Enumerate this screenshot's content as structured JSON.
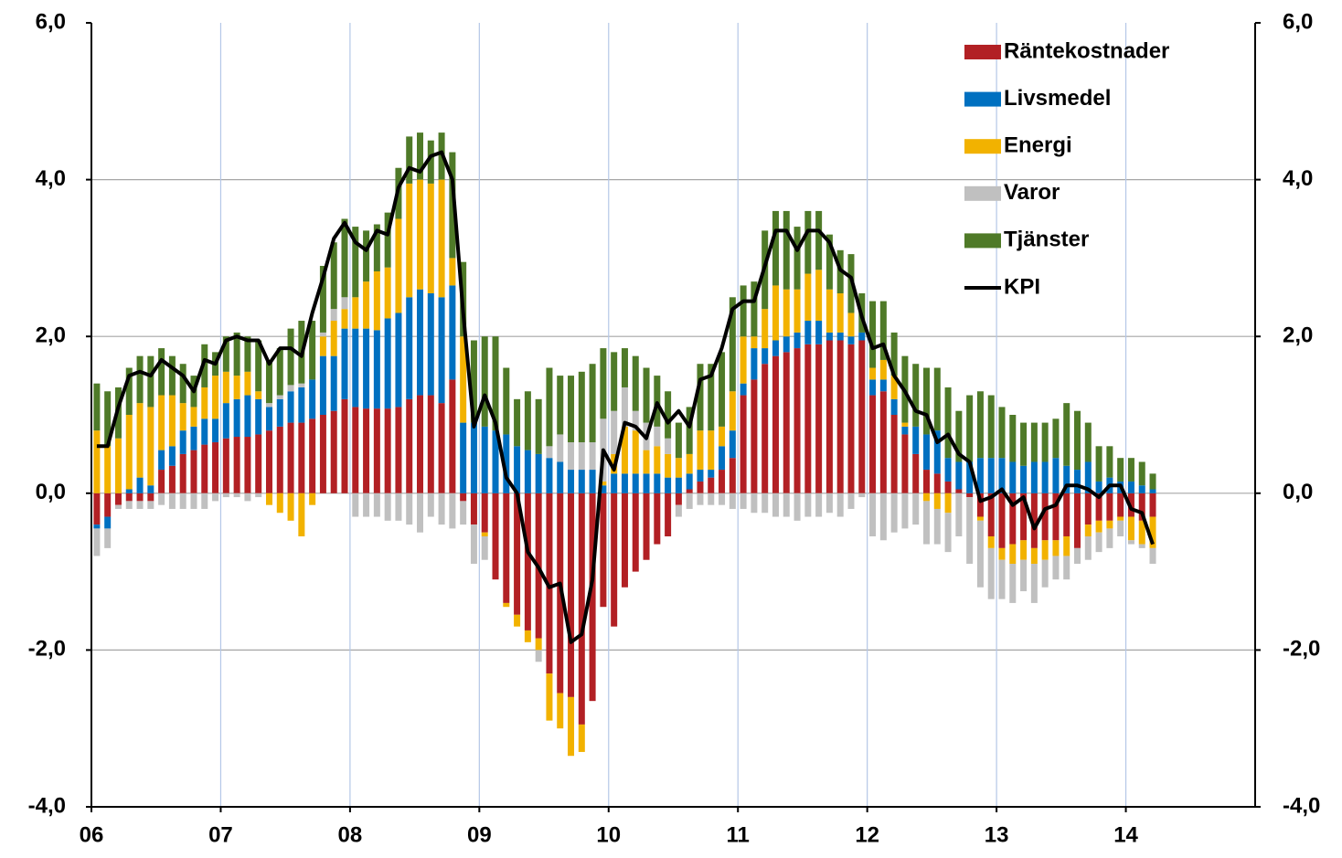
{
  "chart_data": {
    "type": "bar",
    "stacked": true,
    "categories": [
      "06",
      null,
      null,
      null,
      null,
      null,
      null,
      null,
      null,
      null,
      null,
      null,
      "07",
      null,
      null,
      null,
      null,
      null,
      null,
      null,
      null,
      null,
      null,
      null,
      "08",
      null,
      null,
      null,
      null,
      null,
      null,
      null,
      null,
      null,
      null,
      null,
      "09",
      null,
      null,
      null,
      null,
      null,
      null,
      null,
      null,
      null,
      null,
      null,
      "10",
      null,
      null,
      null,
      null,
      null,
      null,
      null,
      null,
      null,
      null,
      null,
      "11",
      null,
      null,
      null,
      null,
      null,
      null,
      null,
      null,
      null,
      null,
      null,
      "12",
      null,
      null,
      null,
      null,
      null,
      null,
      null,
      null,
      null,
      null,
      null,
      "13",
      null,
      null,
      null,
      null,
      null,
      null,
      null,
      null,
      null,
      null,
      null,
      "14",
      null,
      null
    ],
    "series": [
      {
        "name": "Räntekostnader",
        "color": "#b22024",
        "values": [
          -0.4,
          -0.3,
          -0.15,
          -0.1,
          -0.1,
          -0.1,
          0.3,
          0.35,
          0.5,
          0.55,
          0.62,
          0.65,
          0.7,
          0.72,
          0.72,
          0.75,
          0.8,
          0.85,
          0.9,
          0.9,
          0.95,
          1.0,
          1.05,
          1.2,
          1.1,
          1.08,
          1.08,
          1.08,
          1.1,
          1.2,
          1.25,
          1.25,
          1.15,
          1.45,
          -0.1,
          -0.4,
          -0.5,
          -1.1,
          -1.4,
          -1.55,
          -1.75,
          -1.85,
          -2.3,
          -2.55,
          -2.6,
          -2.95,
          -2.65,
          -1.45,
          -1.7,
          -1.2,
          -1.0,
          -0.85,
          -0.65,
          -0.55,
          -0.15,
          0.05,
          0.15,
          0.2,
          0.3,
          0.45,
          1.25,
          1.45,
          1.65,
          1.75,
          1.8,
          1.85,
          1.9,
          1.9,
          1.95,
          1.95,
          1.9,
          1.95,
          1.25,
          1.3,
          1.0,
          0.75,
          0.5,
          0.3,
          0.25,
          0.15,
          0.05,
          -0.05,
          -0.3,
          -0.55,
          -0.7,
          -0.65,
          -0.6,
          -0.7,
          -0.6,
          -0.6,
          -0.55,
          -0.7,
          -0.4,
          -0.35,
          -0.35,
          -0.3,
          -0.3,
          -0.35,
          -0.3
        ]
      },
      {
        "name": "Livsmedel",
        "color": "#0070c0",
        "values": [
          -0.05,
          -0.15,
          0.0,
          0.05,
          0.2,
          0.1,
          0.25,
          0.25,
          0.3,
          0.3,
          0.33,
          0.3,
          0.45,
          0.48,
          0.53,
          0.45,
          0.3,
          0.35,
          0.4,
          0.45,
          0.5,
          0.75,
          0.7,
          0.9,
          1.0,
          1.02,
          1.0,
          1.15,
          1.2,
          1.3,
          1.35,
          1.3,
          1.35,
          1.2,
          0.9,
          0.9,
          0.85,
          0.8,
          0.75,
          0.6,
          0.55,
          0.5,
          0.45,
          0.4,
          0.3,
          0.3,
          0.3,
          0.1,
          0.25,
          0.25,
          0.25,
          0.25,
          0.25,
          0.2,
          0.2,
          0.2,
          0.15,
          0.1,
          0.3,
          0.35,
          0.15,
          0.4,
          0.2,
          0.2,
          0.2,
          0.2,
          0.3,
          0.3,
          0.1,
          0.1,
          0.1,
          0.1,
          0.2,
          0.15,
          0.2,
          0.1,
          0.35,
          0.45,
          0.55,
          0.3,
          0.35,
          0.4,
          0.45,
          0.45,
          0.45,
          0.4,
          0.35,
          0.4,
          0.4,
          0.45,
          0.35,
          0.3,
          0.4,
          0.15,
          0.2,
          0.15,
          0.15,
          0.1,
          0.05
        ]
      },
      {
        "name": "Energi",
        "color": "#f2b200",
        "values": [
          0.8,
          0.6,
          0.7,
          0.95,
          0.95,
          1.0,
          0.7,
          0.65,
          0.35,
          0.25,
          0.4,
          0.55,
          0.4,
          0.3,
          0.3,
          0.1,
          -0.15,
          -0.25,
          -0.35,
          -0.55,
          -0.15,
          0.25,
          0.45,
          0.25,
          0.4,
          0.6,
          0.75,
          0.65,
          1.2,
          1.45,
          1.4,
          1.4,
          1.5,
          0.35,
          1.1,
          0.0,
          -0.05,
          0.0,
          -0.05,
          -0.15,
          -0.15,
          -0.15,
          -0.6,
          -0.45,
          -0.75,
          -0.35,
          0.0,
          0.05,
          0.25,
          0.6,
          0.55,
          0.3,
          0.35,
          0.3,
          0.25,
          0.25,
          0.5,
          0.5,
          0.25,
          0.5,
          0.6,
          0.15,
          0.5,
          0.7,
          0.6,
          0.55,
          0.6,
          0.65,
          0.55,
          0.5,
          0.3,
          0.0,
          0.15,
          0.25,
          0.3,
          0.05,
          0.0,
          -0.1,
          -0.2,
          -0.25,
          0.0,
          0.0,
          -0.05,
          -0.15,
          -0.15,
          -0.25,
          -0.25,
          -0.2,
          -0.25,
          -0.2,
          -0.25,
          0.0,
          -0.15,
          -0.15,
          -0.1,
          -0.05,
          -0.3,
          -0.3,
          -0.4
        ]
      },
      {
        "name": "Varor",
        "color": "#c0c0c0",
        "values": [
          -0.35,
          -0.25,
          -0.05,
          -0.1,
          -0.1,
          -0.1,
          -0.15,
          -0.2,
          -0.2,
          -0.2,
          -0.2,
          -0.1,
          -0.05,
          -0.05,
          -0.1,
          -0.05,
          0.05,
          0.05,
          0.08,
          0.05,
          0.0,
          0.05,
          0.15,
          0.15,
          -0.3,
          -0.3,
          -0.3,
          -0.35,
          -0.35,
          -0.4,
          -0.5,
          -0.3,
          -0.4,
          -0.45,
          -0.3,
          -0.5,
          -0.3,
          0.0,
          0.0,
          0.0,
          0.0,
          -0.15,
          0.15,
          0.35,
          0.35,
          0.35,
          0.35,
          0.8,
          0.55,
          0.5,
          0.25,
          0.35,
          0.25,
          0.2,
          -0.15,
          -0.2,
          -0.15,
          -0.15,
          -0.15,
          -0.2,
          -0.2,
          -0.25,
          -0.25,
          -0.3,
          -0.3,
          -0.35,
          -0.3,
          -0.3,
          -0.25,
          -0.3,
          -0.2,
          -0.05,
          -0.55,
          -0.6,
          -0.5,
          -0.45,
          -0.4,
          -0.55,
          -0.45,
          -0.5,
          -0.55,
          -0.85,
          -0.85,
          -0.65,
          -0.5,
          -0.5,
          -0.4,
          -0.5,
          -0.35,
          -0.3,
          -0.3,
          -0.2,
          -0.3,
          -0.25,
          -0.25,
          -0.2,
          -0.05,
          -0.05,
          -0.2
        ]
      },
      {
        "name": "Tjänster",
        "color": "#4f7a28",
        "values": [
          0.6,
          0.7,
          0.65,
          0.6,
          0.6,
          0.65,
          0.6,
          0.5,
          0.5,
          0.4,
          0.55,
          0.3,
          0.45,
          0.55,
          0.45,
          0.65,
          0.55,
          0.6,
          0.72,
          0.8,
          0.75,
          0.85,
          0.85,
          1.0,
          0.9,
          0.65,
          0.6,
          0.7,
          0.65,
          0.6,
          0.6,
          0.55,
          0.6,
          1.35,
          0.95,
          1.05,
          1.15,
          1.2,
          0.85,
          0.6,
          0.75,
          0.7,
          1.0,
          0.75,
          0.85,
          0.9,
          1.0,
          0.9,
          0.75,
          0.5,
          0.7,
          0.7,
          0.65,
          0.6,
          0.45,
          0.6,
          0.85,
          0.85,
          0.95,
          1.2,
          0.65,
          0.7,
          1.0,
          0.95,
          1.0,
          0.8,
          0.8,
          0.75,
          0.7,
          0.55,
          0.75,
          0.5,
          0.85,
          0.75,
          0.55,
          0.85,
          0.8,
          0.85,
          0.8,
          0.9,
          0.65,
          0.85,
          0.85,
          0.8,
          0.65,
          0.6,
          0.55,
          0.5,
          0.5,
          0.5,
          0.8,
          0.75,
          0.5,
          0.45,
          0.4,
          0.3,
          0.3,
          0.3,
          0.2
        ]
      },
      {
        "name": "KPI",
        "color": "#000000",
        "type": "line",
        "values": [
          0.6,
          0.6,
          1.1,
          1.5,
          1.55,
          1.5,
          1.7,
          1.6,
          1.5,
          1.3,
          1.7,
          1.65,
          1.95,
          2.0,
          1.95,
          1.95,
          1.65,
          1.85,
          1.85,
          1.75,
          2.3,
          2.75,
          3.25,
          3.45,
          3.2,
          3.1,
          3.35,
          3.3,
          3.9,
          4.15,
          4.1,
          4.3,
          4.35,
          4.0,
          2.3,
          0.85,
          1.25,
          0.9,
          0.2,
          0.0,
          -0.75,
          -0.95,
          -1.2,
          -1.15,
          -1.9,
          -1.8,
          -1.1,
          0.55,
          0.3,
          0.9,
          0.85,
          0.7,
          1.15,
          0.9,
          1.05,
          0.85,
          1.45,
          1.5,
          1.85,
          2.35,
          2.45,
          2.45,
          2.9,
          3.35,
          3.35,
          3.1,
          3.35,
          3.35,
          3.2,
          2.85,
          2.75,
          2.25,
          1.85,
          1.9,
          1.5,
          1.3,
          1.05,
          1.0,
          0.65,
          0.75,
          0.5,
          0.4,
          -0.1,
          -0.05,
          0.05,
          -0.15,
          -0.05,
          -0.45,
          -0.2,
          -0.15,
          0.1,
          0.1,
          0.05,
          -0.05,
          0.1,
          0.1,
          -0.2,
          -0.25,
          -0.65
        ]
      }
    ],
    "ylim": [
      -4,
      6
    ],
    "yticks": [
      {
        "value": -4,
        "label": "-4,0"
      },
      {
        "value": -2,
        "label": "-2,0"
      },
      {
        "value": 0,
        "label": "0,0"
      },
      {
        "value": 2,
        "label": "2,0"
      },
      {
        "value": 4,
        "label": "4,0"
      },
      {
        "value": 6,
        "label": "6,0"
      }
    ],
    "y2lim": [
      -4,
      6
    ],
    "y2ticks": [
      {
        "value": -4,
        "label": "-4,0"
      },
      {
        "value": -2,
        "label": "-2,0"
      },
      {
        "value": 0,
        "label": "0,0"
      },
      {
        "value": 2,
        "label": "2,0"
      },
      {
        "value": 4,
        "label": "4,0"
      },
      {
        "value": 6,
        "label": "6,0"
      }
    ],
    "grid": true,
    "legend": "top-right"
  }
}
